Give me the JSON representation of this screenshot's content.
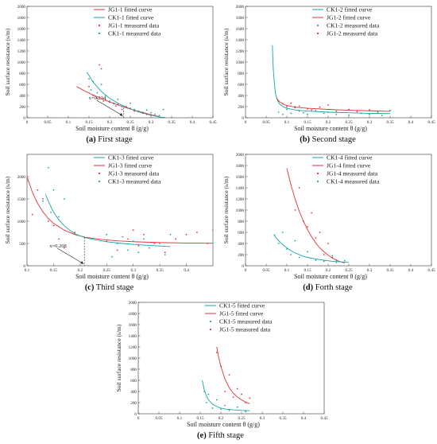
{
  "colors": {
    "blue": "#1aa3a3",
    "red": "#e0323a",
    "axis": "#333333",
    "annot": "#222222"
  },
  "chart_data": [
    {
      "type": "scatter",
      "panel_id": "a",
      "caption_letter": "(a)",
      "caption_text": "First stage",
      "xlabel": "Soil moisture content θ (g/g)",
      "ylabel": "Soil surface resistance (s/m)",
      "xlim": [
        0,
        0.45
      ],
      "ylim": [
        0,
        2000
      ],
      "xticks": [
        "0",
        "0.05",
        "0.1",
        "0.15",
        "0.2",
        "0.25",
        "0.3",
        "0.35",
        "0.4",
        "0.45"
      ],
      "yticks": [
        "0",
        "200",
        "400",
        "600",
        "800",
        "1000",
        "1200",
        "1400",
        "1600",
        "1800",
        "2000"
      ],
      "legend": [
        {
          "label": "JG1-1 fitted curve",
          "kind": "line",
          "color": "red"
        },
        {
          "label": "CK1-1 fitted curve",
          "kind": "line",
          "color": "blue"
        },
        {
          "label": "JG1-1 measured data",
          "kind": "dot",
          "color": "red"
        },
        {
          "label": "CK1-1 measured data",
          "kind": "dot",
          "color": "blue"
        }
      ],
      "annotation": {
        "label": "x=0.234",
        "x": 0.234,
        "y": 180
      },
      "curves": [
        {
          "color": "red",
          "x": [
            0.12,
            0.14,
            0.16,
            0.18,
            0.2,
            0.22,
            0.24,
            0.26,
            0.28,
            0.3,
            0.32
          ],
          "y": [
            560,
            480,
            410,
            345,
            285,
            230,
            180,
            135,
            95,
            55,
            20
          ]
        },
        {
          "color": "blue",
          "x": [
            0.145,
            0.16,
            0.18,
            0.2,
            0.22,
            0.24,
            0.26,
            0.28,
            0.3,
            0.32,
            0.335
          ],
          "y": [
            820,
            640,
            470,
            350,
            260,
            190,
            130,
            85,
            45,
            15,
            5
          ]
        }
      ],
      "points": [
        {
          "color": "red",
          "x": [
            0.15,
            0.16,
            0.17,
            0.175,
            0.18,
            0.185,
            0.19,
            0.2,
            0.21,
            0.215,
            0.22,
            0.23,
            0.24,
            0.25,
            0.26,
            0.27,
            0.28,
            0.29,
            0.3
          ],
          "y": [
            560,
            400,
            350,
            950,
            880,
            300,
            320,
            280,
            260,
            210,
            240,
            150,
            200,
            170,
            120,
            110,
            80,
            60,
            50
          ]
        },
        {
          "color": "blue",
          "x": [
            0.15,
            0.155,
            0.16,
            0.17,
            0.18,
            0.19,
            0.2,
            0.21,
            0.22,
            0.23,
            0.25,
            0.26,
            0.27,
            0.28,
            0.29,
            0.3,
            0.31,
            0.32,
            0.33
          ],
          "y": [
            700,
            500,
            650,
            450,
            600,
            400,
            300,
            250,
            330,
            200,
            260,
            150,
            120,
            100,
            140,
            90,
            60,
            40,
            150
          ]
        }
      ]
    },
    {
      "type": "scatter",
      "panel_id": "b",
      "caption_letter": "(b)",
      "caption_text": "Second stage",
      "xlabel": "Soil moisture content θ (g/g)",
      "ylabel": "Soil surface resistance (s/m)",
      "xlim": [
        0,
        0.45
      ],
      "ylim": [
        0,
        2000
      ],
      "xticks": [
        "0",
        "0.05",
        "0.1",
        "0.15",
        "0.2",
        "0.25",
        "0.3",
        "0.35",
        "0.4",
        "0.45"
      ],
      "yticks": [
        "0",
        "200",
        "400",
        "600",
        "800",
        "1000",
        "1200",
        "1400",
        "1600",
        "1800",
        "2000"
      ],
      "legend": [
        {
          "label": "CK1-2 fitted curve",
          "kind": "line",
          "color": "blue"
        },
        {
          "label": "JG1-2 fitted curve",
          "kind": "line",
          "color": "red"
        },
        {
          "label": "CK1-2 measured data",
          "kind": "dot",
          "color": "blue"
        },
        {
          "label": "JG1-2  measured data",
          "kind": "dot",
          "color": "red"
        }
      ],
      "curves": [
        {
          "color": "blue",
          "x": [
            0.065,
            0.067,
            0.07,
            0.073,
            0.077,
            0.082,
            0.09,
            0.1,
            0.12,
            0.15,
            0.2,
            0.25,
            0.3,
            0.35
          ],
          "y": [
            1300,
            900,
            600,
            420,
            320,
            250,
            200,
            170,
            140,
            120,
            100,
            90,
            80,
            75
          ]
        },
        {
          "color": "red",
          "x": [
            0.075,
            0.08,
            0.09,
            0.1,
            0.12,
            0.15,
            0.2,
            0.25,
            0.3,
            0.35
          ],
          "y": [
            360,
            300,
            250,
            220,
            190,
            170,
            150,
            135,
            125,
            115
          ]
        }
      ],
      "points": [
        {
          "color": "blue",
          "x": [
            0.08,
            0.09,
            0.1,
            0.11,
            0.12,
            0.13,
            0.14,
            0.15,
            0.17,
            0.19,
            0.2,
            0.22,
            0.25,
            0.28,
            0.3,
            0.33
          ],
          "y": [
            100,
            60,
            150,
            80,
            200,
            120,
            90,
            60,
            130,
            80,
            100,
            60,
            50,
            80,
            60,
            40
          ]
        },
        {
          "color": "red",
          "x": [
            0.08,
            0.09,
            0.1,
            0.11,
            0.12,
            0.13,
            0.15,
            0.16,
            0.18,
            0.2,
            0.22,
            0.25,
            0.27,
            0.3,
            0.32,
            0.35
          ],
          "y": [
            300,
            250,
            200,
            260,
            180,
            210,
            160,
            140,
            190,
            230,
            120,
            150,
            110,
            140,
            100,
            130
          ]
        }
      ]
    },
    {
      "type": "scatter",
      "panel_id": "c",
      "caption_letter": "(c)",
      "caption_text": "Third stage",
      "xlabel": "Soil moisture content θ (g/g)",
      "ylabel": "Soil surface resistance (s/m)",
      "xlim": [
        0.1,
        0.45
      ],
      "ylim": [
        0,
        2500
      ],
      "xticks": [
        "0.1",
        "0.15",
        "0.2",
        "0.25",
        "0.3",
        "0.35",
        "0.4"
      ],
      "yticks": [
        "0",
        "500",
        "1000",
        "1500",
        "2000"
      ],
      "legend": [
        {
          "label": "CK1-3 fitted curve",
          "kind": "line",
          "color": "blue"
        },
        {
          "label": "JG1-3 fitted curve",
          "kind": "line",
          "color": "red"
        },
        {
          "label": "JG1-3  measured data",
          "kind": "dot",
          "color": "red"
        },
        {
          "label": "CK1-3 measured data",
          "kind": "dot",
          "color": "blue"
        }
      ],
      "annotation": {
        "label": "x=0.208",
        "x": 0.208,
        "y": 640
      },
      "curves": [
        {
          "color": "red",
          "x": [
            0.1,
            0.11,
            0.12,
            0.13,
            0.14,
            0.15,
            0.17,
            0.19,
            0.21,
            0.24,
            0.27,
            0.3,
            0.35,
            0.4,
            0.45
          ],
          "y": [
            2000,
            1650,
            1400,
            1210,
            1060,
            950,
            800,
            700,
            640,
            590,
            560,
            540,
            520,
            510,
            505
          ]
        },
        {
          "color": "blue",
          "x": [
            0.135,
            0.14,
            0.15,
            0.16,
            0.17,
            0.18,
            0.19,
            0.2,
            0.21,
            0.23,
            0.25,
            0.28,
            0.31,
            0.34,
            0.37
          ],
          "y": [
            1600,
            1450,
            1200,
            1030,
            900,
            800,
            720,
            670,
            630,
            580,
            540,
            500,
            470,
            450,
            430
          ]
        }
      ],
      "points": [
        {
          "color": "red",
          "x": [
            0.1,
            0.11,
            0.12,
            0.13,
            0.14,
            0.15,
            0.16,
            0.17,
            0.19,
            0.25,
            0.27,
            0.29,
            0.3,
            0.31,
            0.32,
            0.34,
            0.36,
            0.38,
            0.4,
            0.42,
            0.44,
            0.45
          ],
          "y": [
            1900,
            1150,
            1700,
            1500,
            1000,
            900,
            600,
            400,
            750,
            550,
            350,
            600,
            800,
            450,
            700,
            500,
            300,
            600,
            700,
            750,
            500,
            800
          ]
        },
        {
          "color": "blue",
          "x": [
            0.13,
            0.14,
            0.145,
            0.15,
            0.16,
            0.17,
            0.25,
            0.26,
            0.27,
            0.28,
            0.29,
            0.3,
            0.31,
            0.32,
            0.33,
            0.35,
            0.36,
            0.37
          ],
          "y": [
            1450,
            2200,
            1200,
            1700,
            1100,
            1500,
            700,
            200,
            500,
            650,
            350,
            550,
            300,
            600,
            400,
            500,
            250,
            700
          ]
        }
      ]
    },
    {
      "type": "scatter",
      "panel_id": "d",
      "caption_letter": "(d)",
      "caption_text": "Forth stage",
      "xlabel": "Soil moisture content θ (g/g)",
      "ylabel": "Soil surface resistance (s/m)",
      "xlim": [
        0,
        0.45
      ],
      "ylim": [
        0,
        2000
      ],
      "xticks": [
        "0",
        "0.05",
        "0.1",
        "0.15",
        "0.2",
        "0.25",
        "0.3",
        "0.35",
        "0.4",
        "0.45"
      ],
      "yticks": [
        "0",
        "200",
        "400",
        "600",
        "800",
        "1000",
        "1200",
        "1400",
        "1600",
        "1800",
        "2000"
      ],
      "legend": [
        {
          "label": "CK1-4 fitted curve",
          "kind": "line",
          "color": "blue"
        },
        {
          "label": "JG1-4 fitted curve",
          "kind": "line",
          "color": "red"
        },
        {
          "label": "JG1-4 measured data",
          "kind": "dot",
          "color": "red"
        },
        {
          "label": "CK1-4 measured data",
          "kind": "dot",
          "color": "blue"
        }
      ],
      "curves": [
        {
          "color": "red",
          "x": [
            0.1,
            0.11,
            0.12,
            0.13,
            0.14,
            0.15,
            0.16,
            0.17,
            0.18,
            0.19,
            0.2,
            0.21,
            0.22,
            0.23,
            0.24
          ],
          "y": [
            1750,
            1450,
            1200,
            980,
            800,
            650,
            520,
            410,
            320,
            250,
            190,
            140,
            100,
            70,
            50
          ]
        },
        {
          "color": "blue",
          "x": [
            0.07,
            0.08,
            0.09,
            0.1,
            0.11,
            0.12,
            0.13,
            0.14,
            0.15,
            0.17,
            0.19,
            0.21,
            0.23,
            0.25
          ],
          "y": [
            540,
            450,
            380,
            320,
            270,
            230,
            200,
            170,
            150,
            120,
            100,
            80,
            70,
            60
          ]
        }
      ],
      "points": [
        {
          "color": "red",
          "x": [
            0.12,
            0.13,
            0.14,
            0.15,
            0.16,
            0.17,
            0.18,
            0.19,
            0.2,
            0.21,
            0.22
          ],
          "y": [
            1000,
            1400,
            800,
            700,
            950,
            500,
            600,
            200,
            400,
            150,
            100
          ]
        },
        {
          "color": "blue",
          "x": [
            0.07,
            0.08,
            0.09,
            0.1,
            0.11,
            0.12,
            0.13,
            0.15,
            0.17,
            0.19,
            0.21,
            0.22,
            0.24
          ],
          "y": [
            550,
            400,
            600,
            300,
            200,
            450,
            150,
            250,
            100,
            80,
            180,
            60,
            90
          ]
        }
      ]
    },
    {
      "type": "scatter",
      "panel_id": "e",
      "caption_letter": "(e)",
      "caption_text": "Fifth stage",
      "xlabel": "Soil moisture content θ (g/g)",
      "ylabel": "Soil surface resistance (s/m)",
      "xlim": [
        0,
        0.45
      ],
      "ylim": [
        0,
        2000
      ],
      "xticks": [
        "0",
        "0.05",
        "0.1",
        "0.15",
        "0.2",
        "0.25",
        "0.3",
        "0.35",
        "0.4",
        "0.45"
      ],
      "yticks": [
        "0",
        "200",
        "400",
        "600",
        "800",
        "1000",
        "1200",
        "1400",
        "1600",
        "1800",
        "2000"
      ],
      "legend": [
        {
          "label": "CK1-5  fitted curve",
          "kind": "line",
          "color": "blue"
        },
        {
          "label": "JG1-5  fitted curve",
          "kind": "line",
          "color": "red"
        },
        {
          "label": "CK1-5 measured data",
          "kind": "dot",
          "color": "blue"
        },
        {
          "label": "JG1-5 measured data",
          "kind": "dot",
          "color": "red"
        }
      ],
      "curves": [
        {
          "color": "red",
          "x": [
            0.19,
            0.195,
            0.2,
            0.21,
            0.22,
            0.23,
            0.24,
            0.25,
            0.26,
            0.27
          ],
          "y": [
            1200,
            1000,
            850,
            620,
            470,
            370,
            300,
            250,
            210,
            180
          ]
        },
        {
          "color": "blue",
          "x": [
            0.155,
            0.16,
            0.165,
            0.17,
            0.18,
            0.19,
            0.2,
            0.21,
            0.23,
            0.25,
            0.27
          ],
          "y": [
            600,
            420,
            320,
            250,
            170,
            130,
            100,
            85,
            70,
            60,
            55
          ]
        }
      ],
      "points": [
        {
          "color": "red",
          "x": [
            0.19,
            0.2,
            0.21,
            0.22,
            0.23,
            0.24,
            0.25,
            0.26,
            0.27
          ],
          "y": [
            1100,
            850,
            400,
            700,
            300,
            450,
            350,
            200,
            280
          ]
        },
        {
          "color": "blue",
          "x": [
            0.16,
            0.165,
            0.17,
            0.18,
            0.19,
            0.2,
            0.21,
            0.22,
            0.24,
            0.26
          ],
          "y": [
            400,
            200,
            350,
            100,
            250,
            80,
            150,
            60,
            120,
            40
          ]
        }
      ]
    }
  ]
}
